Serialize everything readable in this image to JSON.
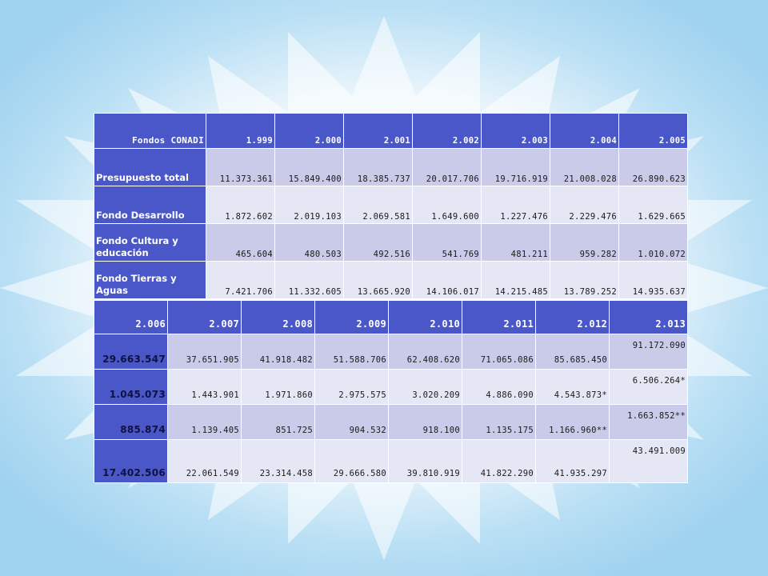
{
  "table1": {
    "header": [
      "Fondos CONADI",
      "1.999",
      "2.000",
      "2.001",
      "2.002",
      "2.003",
      "2.004",
      "2.005"
    ],
    "rows": [
      {
        "label": "Presupuesto total",
        "values": [
          "11.373.361",
          "15.849.400",
          "18.385.737",
          "20.017.706",
          "19.716.919",
          "21.008.028",
          "26.890.623"
        ]
      },
      {
        "label": "Fondo Desarrollo",
        "values": [
          "1.872.602",
          "2.019.103",
          "2.069.581",
          "1.649.600",
          "1.227.476",
          "2.229.476",
          "1.629.665"
        ]
      },
      {
        "label": "Fondo Cultura y educación",
        "values": [
          "465.604",
          "480.503",
          "492.516",
          "541.769",
          "481.211",
          "959.282",
          "1.010.072"
        ]
      },
      {
        "label": "Fondo Tierras y Aguas",
        "values": [
          "7.421.706",
          "11.332.605",
          "13.665.920",
          "14.106.017",
          "14.215.485",
          "13.789.252",
          "14.935.637"
        ]
      }
    ]
  },
  "table2": {
    "header": [
      "2.006",
      "2.007",
      "2.008",
      "2.009",
      "2.010",
      "2.011",
      "2.012",
      "2.013"
    ],
    "rows": [
      [
        "29.663.547",
        "37.651.905",
        "41.918.482",
        "51.588.706",
        "62.408.620",
        "71.065.086",
        "85.685.450",
        "91.172.090"
      ],
      [
        "1.045.073",
        "1.443.901",
        "1.971.860",
        "2.975.575",
        "3.020.209",
        "4.886.090",
        "4.543.873*",
        "6.506.264*"
      ],
      [
        "885.874",
        "1.139.405",
        "851.725",
        "904.532",
        "918.100",
        "1.135.175",
        "1.166.960**",
        "1.663.852**"
      ],
      [
        "17.402.506",
        "22.061.549",
        "23.314.458",
        "29.666.580",
        "39.810.919",
        "41.822.290",
        "41.935.297",
        "43.491.009"
      ]
    ]
  }
}
